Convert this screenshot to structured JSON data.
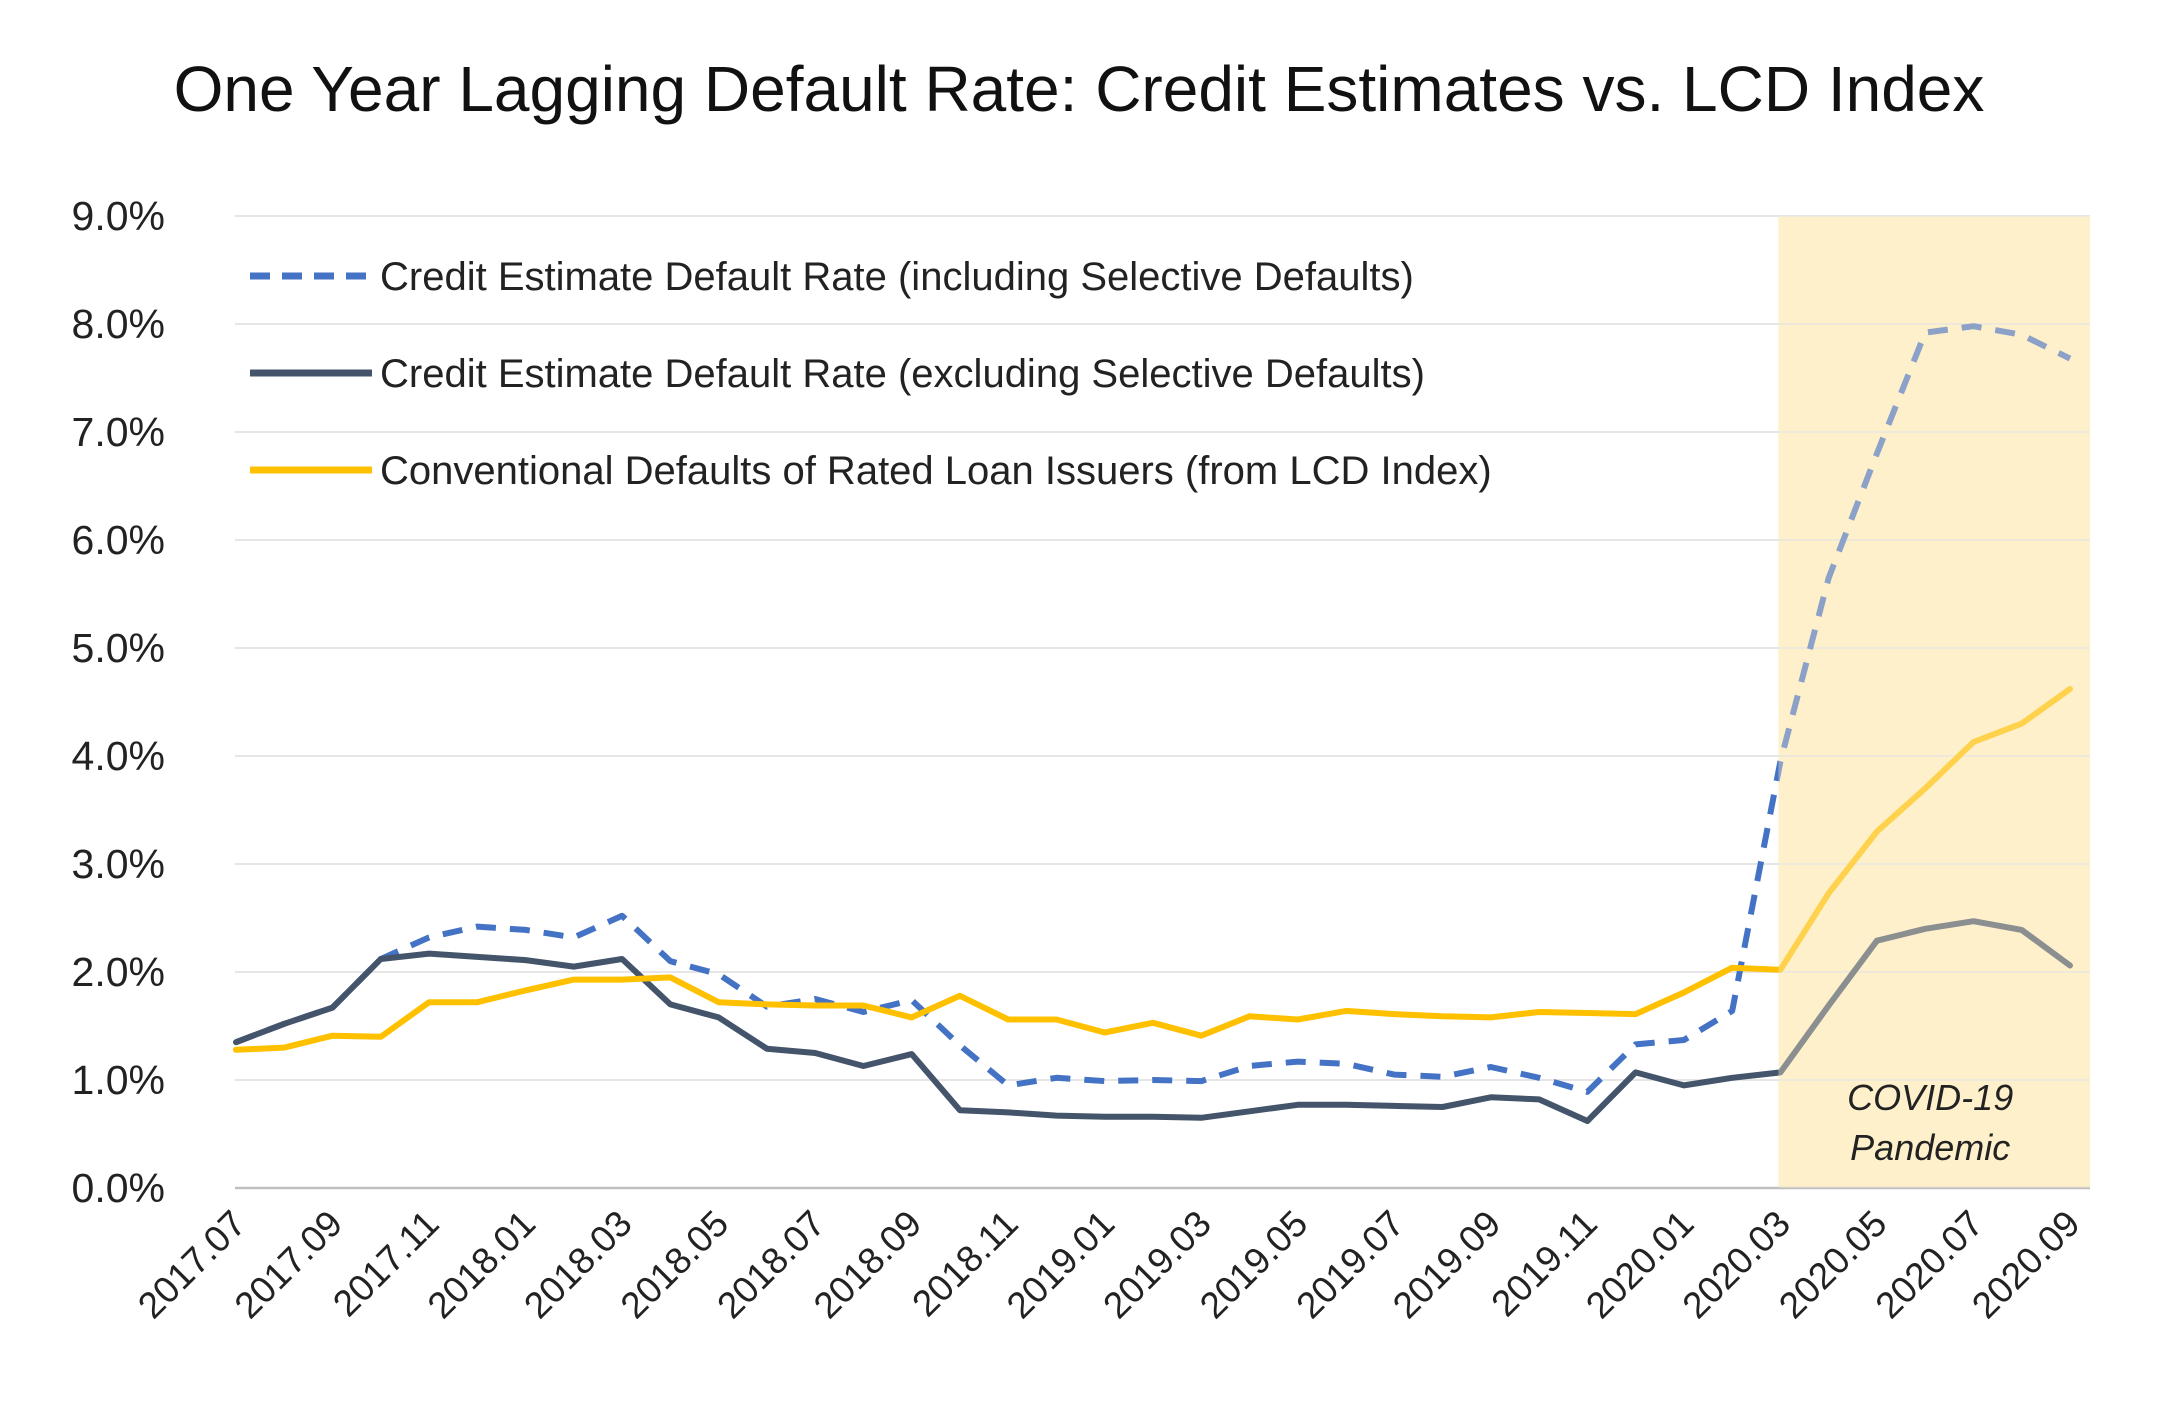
{
  "chart_data": {
    "type": "line",
    "title": "One Year Lagging Default Rate: Credit Estimates vs. LCD Index",
    "xlabel": "",
    "ylabel": "",
    "ylim": [
      0,
      9
    ],
    "yticks": [
      "0.0%",
      "1.0%",
      "2.0%",
      "3.0%",
      "4.0%",
      "5.0%",
      "6.0%",
      "7.0%",
      "8.0%",
      "9.0%"
    ],
    "grid": "horizontal",
    "legend_position": "top-left",
    "x": [
      "2017.07",
      "2017.08",
      "2017.09",
      "2017.10",
      "2017.11",
      "2017.12",
      "2018.01",
      "2018.02",
      "2018.03",
      "2018.04",
      "2018.05",
      "2018.06",
      "2018.07",
      "2018.08",
      "2018.09",
      "2018.10",
      "2018.11",
      "2018.12",
      "2019.01",
      "2019.02",
      "2019.03",
      "2019.04",
      "2019.05",
      "2019.06",
      "2019.07",
      "2019.08",
      "2019.09",
      "2019.10",
      "2019.11",
      "2019.12",
      "2020.01",
      "2020.02",
      "2020.03",
      "2020.04",
      "2020.05",
      "2020.06",
      "2020.07",
      "2020.08",
      "2020.09"
    ],
    "x_tick_labels": [
      "2017.07",
      "2017.09",
      "2017.11",
      "2018.01",
      "2018.03",
      "2018.05",
      "2018.07",
      "2018.09",
      "2018.11",
      "2019.01",
      "2019.03",
      "2019.05",
      "2019.07",
      "2019.09",
      "2019.11",
      "2020.01",
      "2020.03",
      "2020.05",
      "2020.07",
      "2020.09"
    ],
    "series": [
      {
        "name": "Credit Estimate Default Rate (including Selective Defaults)",
        "color": "#4472C4",
        "style": "dashed",
        "values": [
          1.35,
          1.52,
          1.67,
          2.12,
          2.32,
          2.42,
          2.39,
          2.32,
          2.52,
          2.1,
          1.98,
          1.68,
          1.75,
          1.63,
          1.74,
          1.32,
          0.95,
          1.02,
          0.99,
          1.0,
          0.99,
          1.13,
          1.17,
          1.15,
          1.05,
          1.03,
          1.12,
          1.02,
          0.89,
          1.33,
          1.37,
          1.64,
          3.95,
          5.65,
          6.8,
          7.92,
          7.98,
          7.9,
          7.68
        ]
      },
      {
        "name": "Credit Estimate Default Rate (excluding Selective Defaults)",
        "color": "#44546A",
        "style": "solid",
        "values": [
          1.35,
          1.52,
          1.67,
          2.12,
          2.17,
          2.14,
          2.11,
          2.05,
          2.12,
          1.7,
          1.58,
          1.29,
          1.25,
          1.13,
          1.24,
          0.72,
          0.7,
          0.67,
          0.66,
          0.66,
          0.65,
          0.71,
          0.77,
          0.77,
          0.76,
          0.75,
          0.84,
          0.82,
          0.62,
          1.07,
          0.95,
          1.02,
          1.07,
          1.69,
          2.29,
          2.4,
          2.47,
          2.39,
          2.06
        ]
      },
      {
        "name": "Conventional Defaults of Rated Loan Issuers (from LCD Index)",
        "color": "#FFC000",
        "style": "solid",
        "values": [
          1.28,
          1.3,
          1.41,
          1.4,
          1.72,
          1.72,
          1.83,
          1.93,
          1.93,
          1.95,
          1.72,
          1.7,
          1.69,
          1.69,
          1.58,
          1.78,
          1.56,
          1.56,
          1.44,
          1.53,
          1.41,
          1.59,
          1.56,
          1.64,
          1.61,
          1.59,
          1.58,
          1.63,
          1.62,
          1.61,
          1.81,
          2.04,
          2.02,
          2.73,
          3.3,
          3.7,
          4.13,
          4.3,
          4.62
        ]
      }
    ],
    "shaded_region": {
      "from": "2020.03",
      "to": "2020.09",
      "color": "#FFF0CC",
      "label_lines": [
        "COVID-19",
        "Pandemic"
      ]
    }
  }
}
